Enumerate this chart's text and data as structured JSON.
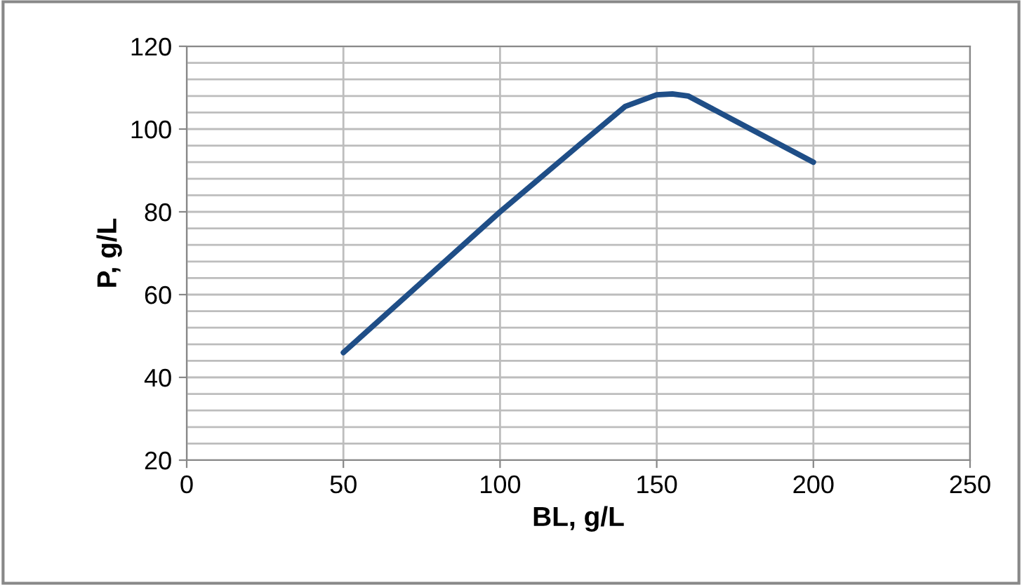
{
  "chart_data": {
    "type": "line",
    "xlabel": "BL, g/L",
    "ylabel": "P, g/L",
    "x": [
      50,
      75,
      100,
      125,
      140,
      150,
      155,
      160,
      175,
      200
    ],
    "series": [
      {
        "color": "#1f4e87",
        "values": [
          46,
          63,
          80,
          96,
          105.5,
          108.3,
          108.5,
          108,
          102,
          92
        ]
      }
    ],
    "xlim": [
      0,
      250
    ],
    "xticks": [
      0,
      50,
      100,
      150,
      200,
      250
    ],
    "ylim": [
      20,
      120
    ],
    "yticks": [
      20,
      {
        "value": 24,
        "label": null
      },
      {
        "value": 28,
        "label": null
      },
      {
        "value": 32,
        "label": null
      },
      {
        "value": 36,
        "label": null
      },
      40,
      {
        "value": 44,
        "label": null
      },
      {
        "value": 48,
        "label": null
      },
      {
        "value": 52,
        "label": null
      },
      {
        "value": 56,
        "label": null
      },
      60,
      {
        "value": 64,
        "label": null
      },
      {
        "value": 68,
        "label": null
      },
      {
        "value": 72,
        "label": null
      },
      {
        "value": 76,
        "label": null
      },
      80,
      {
        "value": 84,
        "label": null
      },
      {
        "value": 88,
        "label": null
      },
      {
        "value": 92,
        "label": null
      },
      {
        "value": 96,
        "label": null
      },
      100,
      {
        "value": 104,
        "label": null
      },
      {
        "value": 108,
        "label": null
      },
      {
        "value": 112,
        "label": null
      },
      {
        "value": 116,
        "label": null
      },
      120
    ],
    "grid": true,
    "marker": "none",
    "line_style": "solid"
  }
}
